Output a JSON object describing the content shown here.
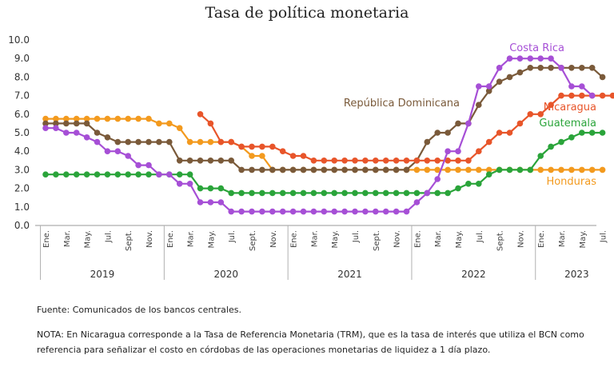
{
  "chart_data": {
    "type": "line",
    "title": "Tasa de política monetaria",
    "ylim": [
      0,
      10
    ],
    "yticks": [
      "0.0",
      "1.0",
      "2.0",
      "3.0",
      "4.0",
      "5.0",
      "6.0",
      "7.0",
      "8.0",
      "9.0",
      "10.0"
    ],
    "grid": false,
    "month_labels": [
      "Ene.",
      "Mar.",
      "May.",
      "Jul.",
      "Sept.",
      "Nov."
    ],
    "years": [
      "2019",
      "2020",
      "2021",
      "2022",
      "2023"
    ],
    "x_start": "2019-01",
    "series": [
      {
        "name": "Costa Rica",
        "color": "#a64fd6",
        "start": 0,
        "values": [
          5.25,
          5.25,
          5,
          5,
          4.75,
          4.5,
          4,
          4,
          3.75,
          3.25,
          3.25,
          2.75,
          2.75,
          2.25,
          2.25,
          1.25,
          1.25,
          1.25,
          0.75,
          0.75,
          0.75,
          0.75,
          0.75,
          0.75,
          0.75,
          0.75,
          0.75,
          0.75,
          0.75,
          0.75,
          0.75,
          0.75,
          0.75,
          0.75,
          0.75,
          0.75,
          1.25,
          1.75,
          2.5,
          4,
          4,
          5.5,
          7.5,
          7.5,
          8.5,
          9,
          9,
          9,
          9,
          9,
          8.5,
          7.5,
          7.5,
          7
        ]
      },
      {
        "name": "República Dominicana",
        "color": "#7a5a3a",
        "start": 0,
        "values": [
          5.5,
          5.5,
          5.5,
          5.5,
          5.5,
          5,
          4.75,
          4.5,
          4.5,
          4.5,
          4.5,
          4.5,
          4.5,
          3.5,
          3.5,
          3.5,
          3.5,
          3.5,
          3.5,
          3,
          3,
          3,
          3,
          3,
          3,
          3,
          3,
          3,
          3,
          3,
          3,
          3,
          3,
          3,
          3,
          3,
          3.5,
          4.5,
          5,
          5,
          5.5,
          5.5,
          6.5,
          7.25,
          7.75,
          8,
          8.25,
          8.5,
          8.5,
          8.5,
          8.5,
          8.5,
          8.5,
          8.5,
          8
        ]
      },
      {
        "name": "Nicaragua",
        "color": "#e8552a",
        "start": 15,
        "values": [
          6,
          5.5,
          4.5,
          4.5,
          4.25,
          4.25,
          4.25,
          4.25,
          4,
          3.75,
          3.75,
          3.5,
          3.5,
          3.5,
          3.5,
          3.5,
          3.5,
          3.5,
          3.5,
          3.5,
          3.5,
          3.5,
          3.5,
          3.5,
          3.5,
          3.5,
          3.5,
          4,
          4.5,
          5,
          5,
          5.5,
          6,
          6,
          6.5,
          7,
          7,
          7,
          7,
          7,
          7,
          7,
          7,
          7
        ]
      },
      {
        "name": "Guatemala",
        "color": "#2aa43a",
        "start": 0,
        "values": [
          2.75,
          2.75,
          2.75,
          2.75,
          2.75,
          2.75,
          2.75,
          2.75,
          2.75,
          2.75,
          2.75,
          2.75,
          2.75,
          2.75,
          2.75,
          2,
          2,
          2,
          1.75,
          1.75,
          1.75,
          1.75,
          1.75,
          1.75,
          1.75,
          1.75,
          1.75,
          1.75,
          1.75,
          1.75,
          1.75,
          1.75,
          1.75,
          1.75,
          1.75,
          1.75,
          1.75,
          1.75,
          1.75,
          1.75,
          2,
          2.25,
          2.25,
          2.75,
          3,
          3,
          3,
          3,
          3.75,
          4.25,
          4.5,
          4.75,
          5,
          5,
          5
        ]
      },
      {
        "name": "Honduras",
        "color": "#f39a1e",
        "start": 0,
        "values": [
          5.75,
          5.75,
          5.75,
          5.75,
          5.75,
          5.75,
          5.75,
          5.75,
          5.75,
          5.75,
          5.75,
          5.5,
          5.5,
          5.25,
          4.5,
          4.5,
          4.5,
          4.5,
          4.5,
          4.25,
          3.75,
          3.75,
          3,
          3,
          3,
          3,
          3,
          3,
          3,
          3,
          3,
          3,
          3,
          3,
          3,
          3,
          3,
          3,
          3,
          3,
          3,
          3,
          3,
          3,
          3,
          3,
          3,
          3,
          3,
          3,
          3,
          3,
          3,
          3,
          3
        ]
      }
    ]
  },
  "notes": {
    "fuente": "Fuente: Comunicados de los bancos centrales.",
    "nota": "NOTA: En Nicaragua corresponde a la Tasa de Referencia Monetaria (TRM), que es la tasa de interés que utiliza el BCN como referencia para señalizar el costo en córdobas de las operaciones monetarias de liquidez a 1 día plazo."
  }
}
